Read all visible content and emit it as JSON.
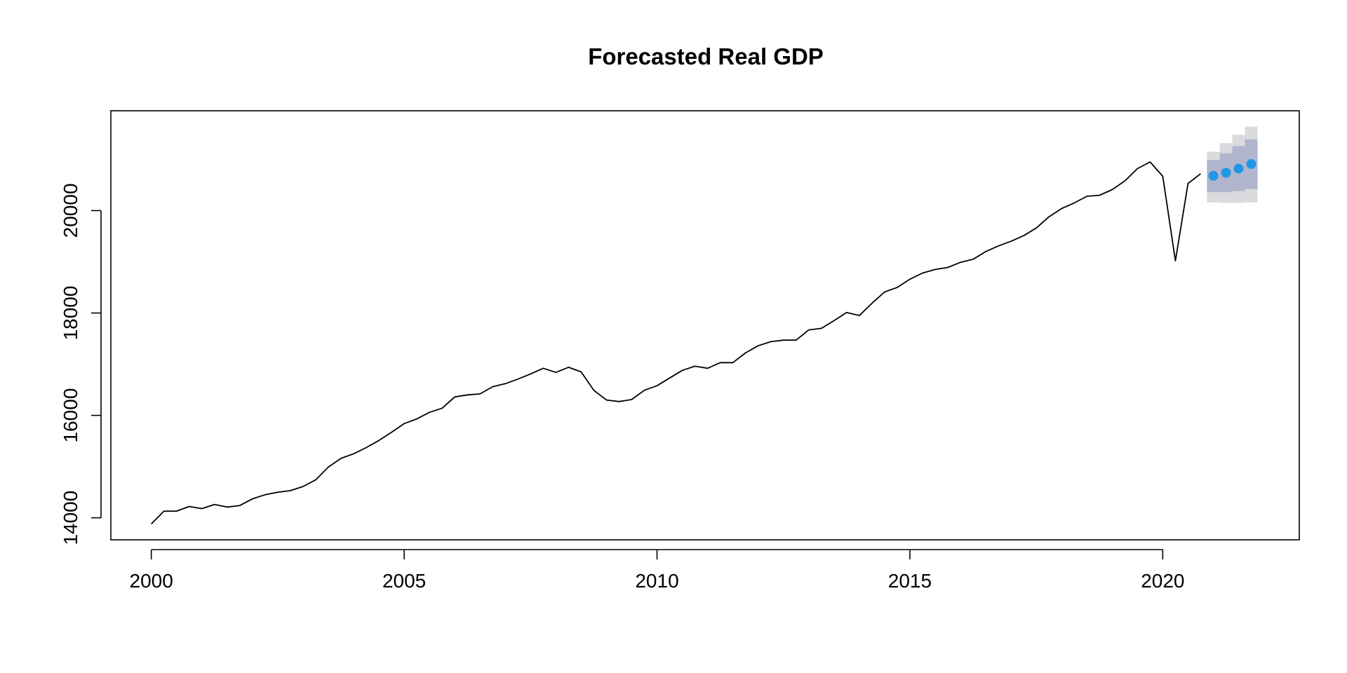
{
  "chart_data": {
    "type": "line",
    "title": "Forecasted Real GDP",
    "xlabel": "",
    "ylabel": "",
    "xlim": [
      1999.2,
      2022.7
    ],
    "ylim": [
      13570,
      21950
    ],
    "x_ticks": [
      2000,
      2005,
      2010,
      2015,
      2020
    ],
    "x_tick_labels": [
      "2000",
      "2005",
      "2010",
      "2015",
      "2020"
    ],
    "y_ticks": [
      14000,
      16000,
      18000,
      20000
    ],
    "y_tick_labels": [
      "14000",
      "16000",
      "18000",
      "20000"
    ],
    "grid": false,
    "legend": "none",
    "colors": {
      "history_line": "#000000",
      "forecast_point": "#2297e6",
      "interval_80": "#b1b5ce",
      "interval_95": "#dbdbdf"
    },
    "history": {
      "start": 2000.0,
      "step": 0.25,
      "values": [
        13880,
        14130,
        14130,
        14220,
        14180,
        14260,
        14210,
        14240,
        14370,
        14450,
        14500,
        14530,
        14610,
        14740,
        14990,
        15160,
        15250,
        15370,
        15510,
        15670,
        15840,
        15930,
        16060,
        16140,
        16360,
        16400,
        16420,
        16560,
        16620,
        16710,
        16810,
        16920,
        16840,
        16940,
        16850,
        16490,
        16300,
        16270,
        16310,
        16490,
        16580,
        16730,
        16880,
        16960,
        16920,
        17030,
        17030,
        17220,
        17360,
        17440,
        17470,
        17470,
        17670,
        17700,
        17850,
        18010,
        17950,
        18190,
        18410,
        18500,
        18660,
        18780,
        18850,
        18890,
        18990,
        19050,
        19200,
        19310,
        19400,
        19510,
        19660,
        19880,
        20040,
        20150,
        20280,
        20300,
        20410,
        20580,
        20820,
        20950,
        20670,
        19020,
        20530,
        20720
      ]
    },
    "forecast": {
      "x": [
        2021.0,
        2021.25,
        2021.5,
        2021.75
      ],
      "mean": [
        20680,
        20740,
        20820,
        20910
      ],
      "lo80": [
        20360,
        20360,
        20380,
        20420
      ],
      "hi80": [
        20990,
        21120,
        21260,
        21390
      ],
      "lo95": [
        20160,
        20150,
        20150,
        20160
      ],
      "hi95": [
        21150,
        21320,
        21480,
        21640
      ]
    }
  }
}
